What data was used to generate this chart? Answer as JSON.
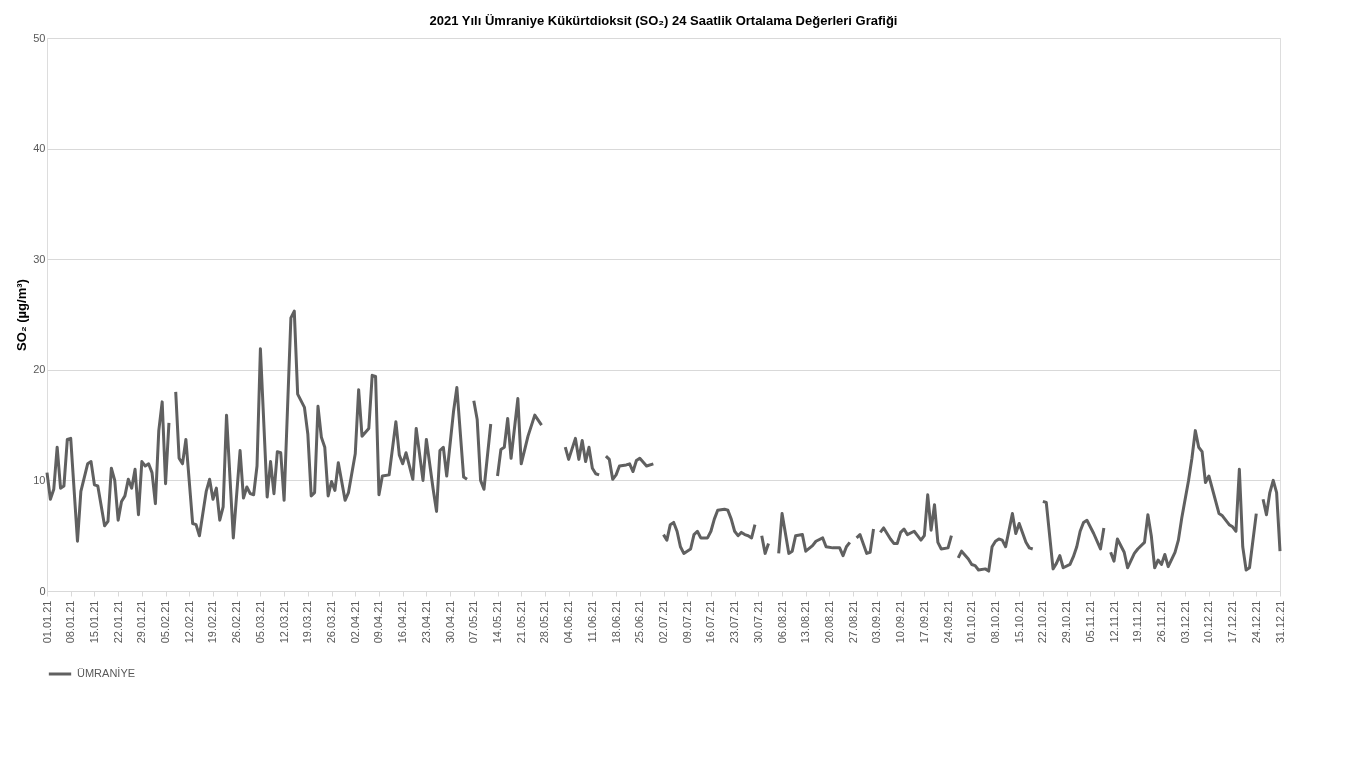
{
  "chart_data": {
    "type": "line",
    "title": "2021 Yılı Ümraniye Kükürtdioksit (SO₂) 24 Saatlik Ortalama Değerleri Grafiği",
    "ylabel": "SO₂ (µg/m³)",
    "x": [
      "2021-01-01",
      "2021-01-02",
      "2021-01-03",
      "2021-01-04",
      "2021-01-05",
      "2021-01-06",
      "2021-01-07",
      "2021-01-08",
      "2021-01-10",
      "2021-01-11",
      "2021-01-13",
      "2021-01-14",
      "2021-01-15",
      "2021-01-16",
      "2021-01-18",
      "2021-01-19",
      "2021-01-20",
      "2021-01-21",
      "2021-01-22",
      "2021-01-23",
      "2021-01-24",
      "2021-01-25",
      "2021-01-26",
      "2021-01-27",
      "2021-01-28",
      "2021-01-29",
      "2021-01-30",
      "2021-01-31",
      "2021-02-01",
      "2021-02-02",
      "2021-02-03",
      "2021-02-04",
      "2021-02-05",
      "2021-02-06",
      "2021-02-07",
      "2021-02-08",
      "2021-02-09",
      "2021-02-10",
      "2021-02-11",
      "2021-02-13",
      "2021-02-14",
      "2021-02-15",
      "2021-02-17",
      "2021-02-18",
      "2021-02-19",
      "2021-02-20",
      "2021-02-21",
      "2021-02-22",
      "2021-02-23",
      "2021-02-25",
      "2021-02-27",
      "2021-02-28",
      "2021-03-01",
      "2021-03-02",
      "2021-03-03",
      "2021-03-04",
      "2021-03-05",
      "2021-03-07",
      "2021-03-08",
      "2021-03-09",
      "2021-03-10",
      "2021-03-11",
      "2021-03-12",
      "2021-03-14",
      "2021-03-15",
      "2021-03-16",
      "2021-03-18",
      "2021-03-19",
      "2021-03-20",
      "2021-03-21",
      "2021-03-22",
      "2021-03-23",
      "2021-03-24",
      "2021-03-25",
      "2021-03-26",
      "2021-03-27",
      "2021-03-28",
      "2021-03-30",
      "2021-03-31",
      "2021-04-02",
      "2021-04-03",
      "2021-04-04",
      "2021-04-06",
      "2021-04-07",
      "2021-04-08",
      "2021-04-09",
      "2021-04-10",
      "2021-04-12",
      "2021-04-14",
      "2021-04-15",
      "2021-04-16",
      "2021-04-17",
      "2021-04-19",
      "2021-04-20",
      "2021-04-22",
      "2021-04-23",
      "2021-04-25",
      "2021-04-26",
      "2021-04-27",
      "2021-04-28",
      "2021-04-29",
      "2021-05-01",
      "2021-05-02",
      "2021-05-04",
      "2021-05-05",
      "2021-05-06",
      "2021-05-07",
      "2021-05-08",
      "2021-05-09",
      "2021-05-10",
      "2021-05-12",
      "2021-05-13",
      "2021-05-14",
      "2021-05-15",
      "2021-05-16",
      "2021-05-17",
      "2021-05-18",
      "2021-05-20",
      "2021-05-21",
      "2021-05-23",
      "2021-05-25",
      "2021-05-27",
      "2021-05-28",
      "2021-06-03",
      "2021-06-04",
      "2021-06-06",
      "2021-06-07",
      "2021-06-08",
      "2021-06-09",
      "2021-06-10",
      "2021-06-11",
      "2021-06-12",
      "2021-06-13",
      "2021-06-14",
      "2021-06-15",
      "2021-06-16",
      "2021-06-17",
      "2021-06-18",
      "2021-06-19",
      "2021-06-21",
      "2021-06-22",
      "2021-06-23",
      "2021-06-24",
      "2021-06-25",
      "2021-06-27",
      "2021-06-29",
      "2021-06-30",
      "2021-07-02",
      "2021-07-03",
      "2021-07-04",
      "2021-07-05",
      "2021-07-06",
      "2021-07-07",
      "2021-07-08",
      "2021-07-10",
      "2021-07-11",
      "2021-07-12",
      "2021-07-13",
      "2021-07-15",
      "2021-07-16",
      "2021-07-17",
      "2021-07-18",
      "2021-07-20",
      "2021-07-21",
      "2021-07-22",
      "2021-07-23",
      "2021-07-24",
      "2021-07-25",
      "2021-07-26",
      "2021-07-27",
      "2021-07-28",
      "2021-07-29",
      "2021-07-30",
      "2021-07-31",
      "2021-08-01",
      "2021-08-02",
      "2021-08-03",
      "2021-08-05",
      "2021-08-06",
      "2021-08-08",
      "2021-08-09",
      "2021-08-10",
      "2021-08-12",
      "2021-08-13",
      "2021-08-15",
      "2021-08-16",
      "2021-08-18",
      "2021-08-19",
      "2021-08-21",
      "2021-08-23",
      "2021-08-24",
      "2021-08-25",
      "2021-08-26",
      "2021-08-27",
      "2021-08-28",
      "2021-08-29",
      "2021-08-31",
      "2021-09-01",
      "2021-09-02",
      "2021-09-03",
      "2021-09-04",
      "2021-09-05",
      "2021-09-07",
      "2021-09-08",
      "2021-09-09",
      "2021-09-10",
      "2021-09-11",
      "2021-09-12",
      "2021-09-14",
      "2021-09-15",
      "2021-09-16",
      "2021-09-17",
      "2021-09-18",
      "2021-09-19",
      "2021-09-20",
      "2021-09-21",
      "2021-09-22",
      "2021-09-24",
      "2021-09-25",
      "2021-09-26",
      "2021-09-27",
      "2021-09-28",
      "2021-09-30",
      "2021-10-01",
      "2021-10-02",
      "2021-10-03",
      "2021-10-05",
      "2021-10-06",
      "2021-10-07",
      "2021-10-08",
      "2021-10-09",
      "2021-10-10",
      "2021-10-11",
      "2021-10-13",
      "2021-10-14",
      "2021-10-15",
      "2021-10-17",
      "2021-10-18",
      "2021-10-19",
      "2021-10-20",
      "2021-10-22",
      "2021-10-23",
      "2021-10-25",
      "2021-10-26",
      "2021-10-27",
      "2021-10-28",
      "2021-10-30",
      "2021-10-31",
      "2021-11-01",
      "2021-11-02",
      "2021-11-03",
      "2021-11-04",
      "2021-11-06",
      "2021-11-08",
      "2021-11-09",
      "2021-11-10",
      "2021-11-11",
      "2021-11-12",
      "2021-11-13",
      "2021-11-15",
      "2021-11-16",
      "2021-11-18",
      "2021-11-19",
      "2021-11-21",
      "2021-11-22",
      "2021-11-23",
      "2021-11-24",
      "2021-11-25",
      "2021-11-26",
      "2021-11-27",
      "2021-11-28",
      "2021-11-30",
      "2021-12-01",
      "2021-12-02",
      "2021-12-04",
      "2021-12-05",
      "2021-12-06",
      "2021-12-07",
      "2021-12-08",
      "2021-12-09",
      "2021-12-10",
      "2021-12-13",
      "2021-12-14",
      "2021-12-16",
      "2021-12-17",
      "2021-12-18",
      "2021-12-19",
      "2021-12-20",
      "2021-12-21",
      "2021-12-22",
      "2021-12-24",
      "2021-12-25",
      "2021-12-26",
      "2021-12-27",
      "2021-12-28",
      "2021-12-29",
      "2021-12-30",
      "2021-12-31"
    ],
    "series": [
      {
        "name": "ÜMRANİYE",
        "color": "#606060",
        "values": [
          10.7,
          8.3,
          9.2,
          13.0,
          9.3,
          9.5,
          13.7,
          13.8,
          4.5,
          9.0,
          11.5,
          11.7,
          9.6,
          9.5,
          5.9,
          6.3,
          11.1,
          10.0,
          6.4,
          8.1,
          8.6,
          10.1,
          9.3,
          11.0,
          6.9,
          11.7,
          11.3,
          11.5,
          10.7,
          7.9,
          14.5,
          17.1,
          9.7,
          15.2,
          null,
          18.0,
          12.0,
          11.5,
          13.7,
          6.1,
          6.0,
          5.0,
          9.0,
          10.1,
          8.3,
          9.3,
          6.4,
          7.6,
          15.9,
          4.8,
          12.7,
          8.4,
          9.4,
          8.8,
          8.7,
          11.3,
          21.9,
          8.5,
          11.7,
          8.8,
          12.6,
          12.5,
          8.2,
          24.7,
          25.3,
          17.8,
          16.6,
          14.2,
          8.6,
          8.9,
          16.7,
          13.9,
          13.0,
          8.6,
          9.9,
          9.1,
          11.6,
          8.2,
          8.9,
          12.4,
          18.2,
          14.0,
          14.7,
          19.5,
          19.4,
          8.7,
          10.4,
          10.5,
          15.3,
          12.3,
          11.5,
          12.5,
          10.1,
          14.7,
          10.0,
          13.7,
          9.2,
          7.2,
          12.7,
          13.0,
          10.4,
          16.2,
          18.4,
          10.3,
          10.1,
          null,
          17.2,
          15.5,
          10.0,
          9.2,
          15.1,
          null,
          10.4,
          12.8,
          13.0,
          15.6,
          12.0,
          17.4,
          11.5,
          14.0,
          15.9,
          15.0,
          null,
          13.0,
          11.9,
          13.8,
          11.9,
          13.6,
          11.7,
          13.0,
          11.1,
          10.6,
          10.5,
          null,
          12.2,
          11.9,
          10.1,
          10.5,
          11.3,
          11.4,
          11.5,
          10.8,
          11.8,
          12.0,
          11.3,
          11.5,
          null,
          5.1,
          4.6,
          6.0,
          6.2,
          5.4,
          4.0,
          3.4,
          3.8,
          5.1,
          5.4,
          4.8,
          4.8,
          5.4,
          6.5,
          7.3,
          7.4,
          7.3,
          6.5,
          5.4,
          5.0,
          5.3,
          5.1,
          5.0,
          4.8,
          6.0,
          null,
          5.0,
          3.4,
          4.3,
          null,
          3.4,
          7.0,
          3.4,
          3.6,
          5.0,
          5.1,
          3.6,
          4.1,
          4.5,
          4.8,
          4.0,
          3.9,
          3.9,
          3.2,
          4.0,
          4.4,
          null,
          4.8,
          5.1,
          3.4,
          3.5,
          5.6,
          null,
          5.3,
          5.7,
          4.7,
          4.3,
          4.3,
          5.3,
          5.6,
          5.1,
          5.4,
          5.0,
          4.6,
          5.0,
          8.7,
          5.5,
          7.8,
          4.4,
          3.8,
          3.9,
          5.0,
          null,
          3.0,
          3.6,
          2.9,
          2.4,
          2.3,
          1.9,
          2.0,
          1.8,
          4.0,
          4.5,
          4.7,
          4.6,
          4.0,
          7.0,
          5.2,
          6.1,
          4.4,
          3.9,
          3.8,
          null,
          8.1,
          8.0,
          2.0,
          2.5,
          3.2,
          2.1,
          2.4,
          3.1,
          4.0,
          5.4,
          6.2,
          6.4,
          5.2,
          3.8,
          5.7,
          null,
          3.5,
          2.7,
          4.7,
          3.5,
          2.1,
          3.4,
          3.8,
          4.4,
          6.9,
          5.0,
          2.1,
          2.8,
          2.4,
          3.3,
          2.2,
          3.5,
          4.6,
          6.6,
          10.0,
          12.0,
          14.5,
          13.0,
          12.6,
          9.8,
          10.4,
          7.0,
          6.8,
          6.0,
          5.8,
          5.4,
          11.0,
          4.0,
          1.9,
          2.1,
          7.0,
          null,
          8.3,
          6.9,
          8.9,
          10.0,
          8.9,
          3.6
        ]
      }
    ],
    "xlim": [
      "2021-01-01",
      "2021-12-31"
    ],
    "xticks": [
      {
        "value": "2021-01-01",
        "label": "01.01.21"
      },
      {
        "value": "2021-01-08",
        "label": "08.01.21"
      },
      {
        "value": "2021-01-15",
        "label": "15.01.21"
      },
      {
        "value": "2021-01-22",
        "label": "22.01.21"
      },
      {
        "value": "2021-01-29",
        "label": "29.01.21"
      },
      {
        "value": "2021-02-05",
        "label": "05.02.21"
      },
      {
        "value": "2021-02-12",
        "label": "12.02.21"
      },
      {
        "value": "2021-02-19",
        "label": "19.02.21"
      },
      {
        "value": "2021-02-26",
        "label": "26.02.21"
      },
      {
        "value": "2021-03-05",
        "label": "05.03.21"
      },
      {
        "value": "2021-03-12",
        "label": "12.03.21"
      },
      {
        "value": "2021-03-19",
        "label": "19.03.21"
      },
      {
        "value": "2021-03-26",
        "label": "26.03.21"
      },
      {
        "value": "2021-04-02",
        "label": "02.04.21"
      },
      {
        "value": "2021-04-09",
        "label": "09.04.21"
      },
      {
        "value": "2021-04-16",
        "label": "16.04.21"
      },
      {
        "value": "2021-04-23",
        "label": "23.04.21"
      },
      {
        "value": "2021-04-30",
        "label": "30.04.21"
      },
      {
        "value": "2021-05-07",
        "label": "07.05.21"
      },
      {
        "value": "2021-05-14",
        "label": "14.05.21"
      },
      {
        "value": "2021-05-21",
        "label": "21.05.21"
      },
      {
        "value": "2021-05-28",
        "label": "28.05.21"
      },
      {
        "value": "2021-06-04",
        "label": "04.06.21"
      },
      {
        "value": "2021-06-11",
        "label": "11.06.21"
      },
      {
        "value": "2021-06-18",
        "label": "18.06.21"
      },
      {
        "value": "2021-06-25",
        "label": "25.06.21"
      },
      {
        "value": "2021-07-02",
        "label": "02.07.21"
      },
      {
        "value": "2021-07-09",
        "label": "09.07.21"
      },
      {
        "value": "2021-07-16",
        "label": "16.07.21"
      },
      {
        "value": "2021-07-23",
        "label": "23.07.21"
      },
      {
        "value": "2021-07-30",
        "label": "30.07.21"
      },
      {
        "value": "2021-08-06",
        "label": "06.08.21"
      },
      {
        "value": "2021-08-13",
        "label": "13.08.21"
      },
      {
        "value": "2021-08-20",
        "label": "20.08.21"
      },
      {
        "value": "2021-08-27",
        "label": "27.08.21"
      },
      {
        "value": "2021-09-03",
        "label": "03.09.21"
      },
      {
        "value": "2021-09-10",
        "label": "10.09.21"
      },
      {
        "value": "2021-09-17",
        "label": "17.09.21"
      },
      {
        "value": "2021-09-24",
        "label": "24.09.21"
      },
      {
        "value": "2021-10-01",
        "label": "01.10.21"
      },
      {
        "value": "2021-10-08",
        "label": "08.10.21"
      },
      {
        "value": "2021-10-15",
        "label": "15.10.21"
      },
      {
        "value": "2021-10-22",
        "label": "22.10.21"
      },
      {
        "value": "2021-10-29",
        "label": "29.10.21"
      },
      {
        "value": "2021-11-05",
        "label": "05.11.21"
      },
      {
        "value": "2021-11-12",
        "label": "12.11.21"
      },
      {
        "value": "2021-11-19",
        "label": "19.11.21"
      },
      {
        "value": "2021-11-26",
        "label": "26.11.21"
      },
      {
        "value": "2021-12-03",
        "label": "03.12.21"
      },
      {
        "value": "2021-12-10",
        "label": "10.12.21"
      },
      {
        "value": "2021-12-17",
        "label": "17.12.21"
      },
      {
        "value": "2021-12-24",
        "label": "24.12.21"
      },
      {
        "value": "2021-12-31",
        "label": "31.12.21"
      }
    ],
    "ylim": [
      0,
      50
    ],
    "yticks": [
      0,
      10,
      20,
      30,
      40,
      50
    ],
    "grid": "y",
    "legend": "bottom",
    "marker": "none",
    "line_style": "solid"
  }
}
